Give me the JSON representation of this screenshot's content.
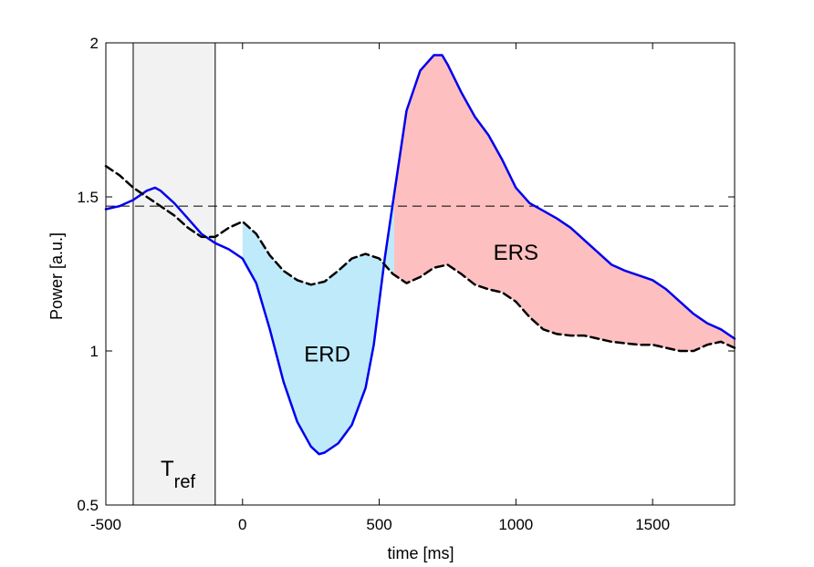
{
  "chart_data": {
    "type": "line",
    "title": "",
    "xlabel": "time [ms]",
    "ylabel": "Power [a.u.]",
    "xlim": [
      -500,
      1800
    ],
    "ylim": [
      0.5,
      2.0
    ],
    "xticks": [
      -500,
      0,
      500,
      1000,
      1500
    ],
    "yticks": [
      0.5,
      1,
      1.5,
      2
    ],
    "xtick_labels": [
      "-500",
      "0",
      "500",
      "1000",
      "1500"
    ],
    "ytick_labels": [
      "0.5",
      "1",
      "1.5",
      "2"
    ],
    "grid": false,
    "legend": "none",
    "reference_window": {
      "x": [
        -400,
        -100
      ],
      "label_main": "T",
      "label_sub": "ref",
      "color": "#f2f2f2"
    },
    "reference_level": 1.47,
    "series": [
      {
        "style": "solid",
        "color": "#0000ee",
        "x": [
          -500,
          -450,
          -400,
          -350,
          -320,
          -300,
          -250,
          -200,
          -150,
          -100,
          -50,
          0,
          50,
          100,
          150,
          200,
          250,
          280,
          300,
          350,
          400,
          450,
          480,
          500,
          520,
          550,
          580,
          600,
          650,
          700,
          730,
          750,
          800,
          850,
          900,
          950,
          1000,
          1050,
          1100,
          1150,
          1200,
          1250,
          1300,
          1350,
          1400,
          1450,
          1500,
          1550,
          1600,
          1650,
          1700,
          1750,
          1800
        ],
        "y": [
          1.46,
          1.47,
          1.49,
          1.52,
          1.53,
          1.52,
          1.48,
          1.43,
          1.38,
          1.35,
          1.33,
          1.3,
          1.22,
          1.07,
          0.9,
          0.77,
          0.69,
          0.665,
          0.67,
          0.7,
          0.76,
          0.88,
          1.02,
          1.16,
          1.3,
          1.48,
          1.66,
          1.78,
          1.91,
          1.96,
          1.96,
          1.93,
          1.84,
          1.76,
          1.7,
          1.62,
          1.53,
          1.48,
          1.455,
          1.43,
          1.4,
          1.36,
          1.32,
          1.28,
          1.26,
          1.245,
          1.23,
          1.2,
          1.16,
          1.12,
          1.09,
          1.07,
          1.04
        ]
      },
      {
        "style": "dashed",
        "color": "#000000",
        "x": [
          -500,
          -450,
          -400,
          -350,
          -300,
          -250,
          -200,
          -150,
          -100,
          -50,
          0,
          50,
          100,
          150,
          200,
          250,
          300,
          350,
          400,
          450,
          500,
          550,
          600,
          650,
          700,
          750,
          800,
          850,
          900,
          950,
          1000,
          1050,
          1100,
          1150,
          1200,
          1250,
          1300,
          1350,
          1400,
          1450,
          1500,
          1550,
          1600,
          1650,
          1700,
          1750,
          1800
        ],
        "y": [
          1.6,
          1.57,
          1.53,
          1.5,
          1.47,
          1.44,
          1.4,
          1.37,
          1.37,
          1.4,
          1.42,
          1.38,
          1.31,
          1.26,
          1.23,
          1.215,
          1.225,
          1.26,
          1.3,
          1.315,
          1.3,
          1.25,
          1.22,
          1.24,
          1.27,
          1.28,
          1.25,
          1.215,
          1.2,
          1.19,
          1.16,
          1.11,
          1.07,
          1.055,
          1.05,
          1.05,
          1.04,
          1.03,
          1.025,
          1.02,
          1.02,
          1.01,
          1.0,
          1.0,
          1.02,
          1.03,
          1.01
        ]
      }
    ],
    "shaded_regions": [
      {
        "label": "ERD",
        "x": [
          0,
          555
        ],
        "color": "#bfeafa",
        "label_pos": [
          310,
          0.99
        ]
      },
      {
        "label": "ERS",
        "x": [
          555,
          1800
        ],
        "color": "#fdbfbf",
        "label_pos": [
          1000,
          1.32
        ]
      }
    ]
  }
}
